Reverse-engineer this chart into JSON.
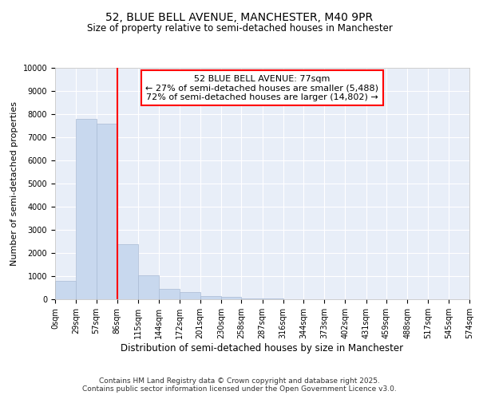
{
  "title": "52, BLUE BELL AVENUE, MANCHESTER, M40 9PR",
  "subtitle": "Size of property relative to semi-detached houses in Manchester",
  "xlabel": "Distribution of semi-detached houses by size in Manchester",
  "ylabel": "Number of semi-detached properties",
  "bar_color": "#c8d8ee",
  "bar_edge_color": "#aabbd4",
  "background_color": "#e8eef8",
  "grid_color": "#ffffff",
  "annotation_line1": "52 BLUE BELL AVENUE: 77sqm",
  "annotation_line2": "← 27% of semi-detached houses are smaller (5,488)",
  "annotation_line3": "72% of semi-detached houses are larger (14,802) →",
  "red_line_x": 86,
  "bin_edges": [
    0,
    29,
    57,
    86,
    115,
    144,
    172,
    201,
    230,
    258,
    287,
    316,
    344,
    373,
    402,
    431,
    459,
    488,
    517,
    545,
    574
  ],
  "bin_labels": [
    "0sqm",
    "29sqm",
    "57sqm",
    "86sqm",
    "115sqm",
    "144sqm",
    "172sqm",
    "201sqm",
    "230sqm",
    "258sqm",
    "287sqm",
    "316sqm",
    "344sqm",
    "373sqm",
    "402sqm",
    "431sqm",
    "459sqm",
    "488sqm",
    "517sqm",
    "545sqm",
    "574sqm"
  ],
  "bar_heights": [
    800,
    7800,
    7600,
    2380,
    1020,
    460,
    305,
    145,
    105,
    50,
    30,
    10,
    5,
    3,
    1,
    0,
    0,
    0,
    0,
    0
  ],
  "ylim": [
    0,
    10000
  ],
  "yticks": [
    0,
    1000,
    2000,
    3000,
    4000,
    5000,
    6000,
    7000,
    8000,
    9000,
    10000
  ],
  "footer_text": "Contains HM Land Registry data © Crown copyright and database right 2025.\nContains public sector information licensed under the Open Government Licence v3.0.",
  "title_fontsize": 10,
  "subtitle_fontsize": 8.5,
  "xlabel_fontsize": 8.5,
  "ylabel_fontsize": 8,
  "tick_fontsize": 7,
  "annotation_fontsize": 8,
  "footer_fontsize": 6.5
}
